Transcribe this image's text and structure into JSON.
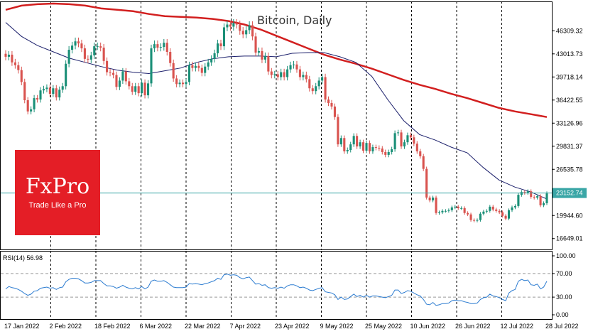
{
  "chart_data": [
    {
      "type": "candlestick",
      "title": "Bitcoin, Daily",
      "colors": {
        "up": "#1a8f77",
        "down": "#d9534f",
        "ma_fast": "#1b1f6b",
        "ma_slow": "#d21f1f",
        "price_line": "#3aa6a6"
      },
      "yticks": [
        16649.01,
        19944.6,
        23152.74,
        26535.78,
        29831.37,
        33126.96,
        36422.55,
        39718.14,
        43013.73,
        46309.32
      ],
      "ylim": [
        15000,
        50500
      ],
      "last_price": 23152.74,
      "x_labels": [
        "17 Jan 2022",
        "2 Feb 2022",
        "18 Feb 2022",
        "6 Mar 2022",
        "22 Mar 2022",
        "7 Apr 2022",
        "23 Apr 2022",
        "9 May 2022",
        "25 May 2022",
        "10 Jun 2022",
        "26 Jun 2022",
        "12 Jul 2022",
        "28 Jul 2022"
      ],
      "closes": [
        42600,
        42900,
        41800,
        41400,
        40700,
        39000,
        36400,
        34800,
        35100,
        36700,
        36500,
        37800,
        38000,
        38200,
        37300,
        38100,
        36800,
        37900,
        38400,
        41600,
        43600,
        44200,
        44800,
        44500,
        43800,
        42300,
        42200,
        42800,
        44100,
        44100,
        43900,
        42000,
        40400,
        40300,
        40000,
        38300,
        39200,
        40500,
        39100,
        38400,
        37600,
        38400,
        37400,
        38900,
        37100,
        38800,
        43800,
        44400,
        43900,
        44000,
        44600,
        43300,
        41700,
        39500,
        38700,
        38900,
        38700,
        39000,
        41400,
        41000,
        41300,
        41000,
        40300,
        41200,
        41800,
        42300,
        43100,
        44500,
        44100,
        46800,
        47200,
        46900,
        47400,
        47200,
        46300,
        45800,
        46400,
        47100,
        45500,
        43200,
        43400,
        42200,
        42700,
        40500,
        40000,
        40100,
        39700,
        40400,
        39700,
        40800,
        41400,
        41500,
        40800,
        39700,
        40000,
        39400,
        38100,
        37700,
        38400,
        39200,
        39700,
        36500,
        36000,
        35500,
        34000,
        30100,
        31000,
        29100,
        29300,
        30100,
        31300,
        29800,
        30400,
        29200,
        30300,
        29100,
        29700,
        29600,
        29500,
        29000,
        28600,
        29000,
        29400,
        31700,
        31800,
        29800,
        30400,
        31400,
        31100,
        30200,
        29100,
        28400,
        26600,
        22500,
        22100,
        22500,
        20300,
        20400,
        20600,
        20600,
        20700,
        21100,
        21200,
        21000,
        21000,
        20300,
        20100,
        19300,
        19200,
        19300,
        20200,
        20500,
        20600,
        21200,
        20800,
        20600,
        20400,
        19900,
        19500,
        20700,
        21100,
        21300,
        22900,
        23300,
        23200,
        23400,
        22600,
        22500,
        22700,
        21400,
        21700,
        23100
      ],
      "ma_fast": [
        47500,
        45500,
        44200,
        43300,
        42400,
        41800,
        41200,
        40700,
        40400,
        40200,
        40600,
        41000,
        41800,
        42300,
        42600,
        42700,
        42700,
        42600,
        43100,
        43200,
        43200,
        42600,
        41800,
        39800,
        36500,
        33500,
        31500,
        30700,
        29700,
        28900,
        26800,
        25000,
        24000,
        23300,
        22300
      ],
      "ma_slow": [
        49300,
        49900,
        50100,
        50200,
        50100,
        49900,
        49500,
        49300,
        49100,
        48700,
        48400,
        48300,
        48200,
        48000,
        47700,
        47200,
        46500,
        45600,
        44700,
        43800,
        42900,
        42200,
        41600,
        40900,
        40100,
        39300,
        38600,
        38000,
        37300,
        36700,
        36000,
        35300,
        34800,
        34400,
        34000
      ]
    },
    {
      "type": "line",
      "title": "RSI(14) 56.98",
      "yticks": [
        0.0,
        30.0,
        70.0,
        100.0
      ],
      "ylim": [
        0,
        100
      ],
      "levels": [
        30,
        70
      ],
      "values": [
        44,
        48,
        46,
        45,
        43,
        40,
        36,
        33,
        35,
        40,
        41,
        45,
        46,
        47,
        45,
        46,
        43,
        46,
        47,
        56,
        60,
        62,
        62,
        61,
        58,
        54,
        54,
        55,
        58,
        58,
        58,
        53,
        49,
        49,
        48,
        45,
        47,
        50,
        47,
        45,
        44,
        46,
        44,
        48,
        44,
        47,
        57,
        59,
        57,
        57,
        58,
        55,
        51,
        47,
        46,
        46,
        46,
        47,
        53,
        52,
        53,
        52,
        51,
        53,
        54,
        56,
        58,
        62,
        60,
        68,
        69,
        67,
        68,
        67,
        63,
        61,
        63,
        64,
        58,
        52,
        53,
        50,
        51,
        46,
        45,
        46,
        45,
        47,
        45,
        49,
        51,
        51,
        49,
        46,
        47,
        45,
        42,
        41,
        43,
        45,
        46,
        39,
        38,
        37,
        34,
        26,
        30,
        26,
        27,
        31,
        35,
        31,
        33,
        30,
        33,
        30,
        32,
        32,
        31,
        30,
        29,
        31,
        33,
        42,
        42,
        36,
        38,
        41,
        40,
        37,
        34,
        32,
        26,
        18,
        17,
        21,
        16,
        17,
        19,
        19,
        20,
        24,
        25,
        24,
        24,
        22,
        21,
        19,
        19,
        20,
        26,
        29,
        30,
        35,
        32,
        31,
        29,
        26,
        24,
        37,
        41,
        43,
        57,
        60,
        58,
        59,
        51,
        50,
        52,
        44,
        47,
        57
      ]
    }
  ]
}
